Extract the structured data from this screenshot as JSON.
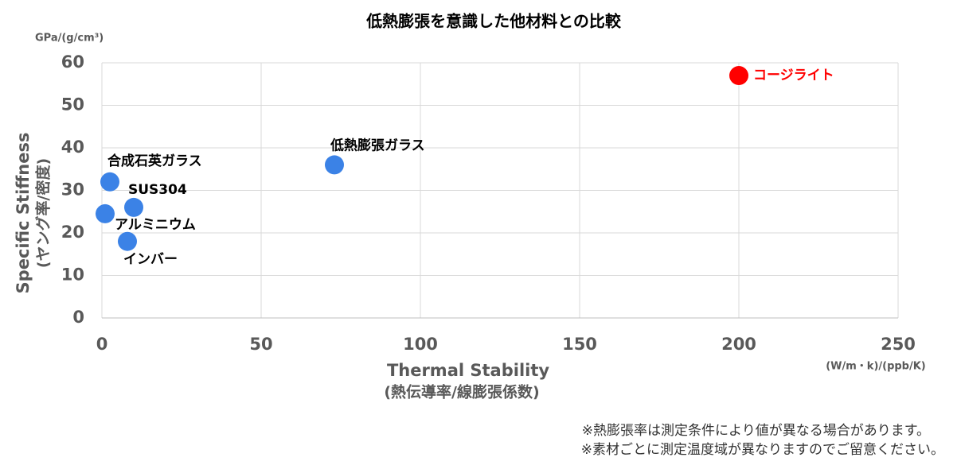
{
  "chart_data": {
    "type": "scatter",
    "title": "低熱膨張を意識した他材料との比較",
    "y_unit": "GPa/(g/cm³)",
    "y_label": [
      "Specific Stiffness",
      "(ヤング率/密度)"
    ],
    "x_label": [
      "Thermal Stability",
      "(熱伝導率/線膨張係数)"
    ],
    "x_unit": "(W/m・k)/(ppb/K)",
    "xlim": [
      0,
      250
    ],
    "ylim": [
      0,
      60
    ],
    "xticks": [
      0,
      50,
      100,
      150,
      200,
      250
    ],
    "yticks": [
      0,
      10,
      20,
      30,
      40,
      50,
      60
    ],
    "grid": true,
    "series": [
      {
        "name": "コージライト",
        "color": "#ff0000",
        "label_color": "#ff0000",
        "x": [
          200
        ],
        "y": [
          57
        ]
      },
      {
        "name": "低熱膨張ガラス",
        "color": "#3b82e6",
        "label_color": "#000000",
        "x": [
          73
        ],
        "y": [
          36
        ]
      },
      {
        "name": "合成石英ガラス",
        "color": "#3b82e6",
        "label_color": "#000000",
        "x": [
          2.5
        ],
        "y": [
          32
        ]
      },
      {
        "name": "SUS304",
        "color": "#3b82e6",
        "label_color": "#000000",
        "x": [
          10
        ],
        "y": [
          26
        ]
      },
      {
        "name": "アルミニウム",
        "color": "#3b82e6",
        "label_color": "#000000",
        "x": [
          1
        ],
        "y": [
          24.5
        ]
      },
      {
        "name": "インバー",
        "color": "#3b82e6",
        "label_color": "#000000",
        "x": [
          8
        ],
        "y": [
          18
        ]
      }
    ]
  },
  "notes": [
    "※熱膨張率は測定条件により値が異なる場合があります。",
    "※素材ごとに測定温度域が異なりますのでご留意ください。"
  ]
}
